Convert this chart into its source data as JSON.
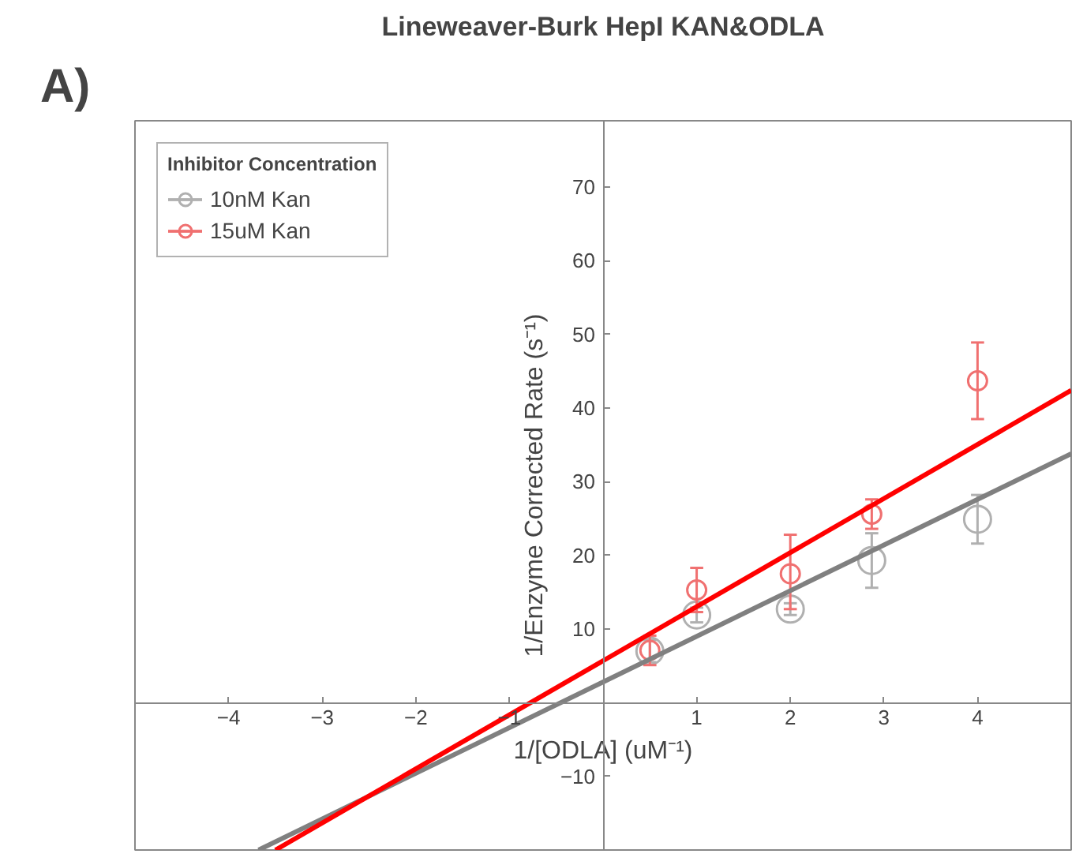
{
  "chart_data": {
    "type": "scatter",
    "title": "Lineweaver-Burk HepI KAN&ODLA",
    "annotations": [
      "A)"
    ],
    "xlabel": "1/[ODLA] (uM⁻¹)",
    "ylabel": "1/Enzyme Corrected Rate (s⁻¹)",
    "legend_title": "Inhibitor Concentration",
    "legend": "top left",
    "marker": "circle",
    "grid": false,
    "xlim": [
      -5,
      5
    ],
    "ylim": [
      -20,
      79
    ],
    "xticks": [
      -4,
      -3,
      -2,
      -1,
      1,
      2,
      3,
      4
    ],
    "yticks": [
      -10,
      10,
      20,
      30,
      40,
      50,
      60,
      70
    ],
    "series": [
      {
        "name": "10nM Kan",
        "color": "#b0b0b0",
        "x": [
          0.5,
          1,
          2,
          2.87,
          4
        ],
        "values": [
          7.0,
          11.9,
          12.7,
          19.3,
          24.9
        ],
        "errors": [
          1.5,
          1,
          0.8,
          3.7,
          3.3
        ]
      },
      {
        "name": "15uM Kan",
        "color": "#f07070",
        "x": [
          0.5,
          1,
          2,
          2.87,
          4
        ],
        "values": [
          7.1,
          15.3,
          17.5,
          25.6,
          43.7
        ],
        "errors": [
          2,
          3,
          [
            12.7,
            22.8
          ],
          2,
          5.2
        ]
      },
      {
        "type": "line",
        "marker": "none",
        "color": "#808080",
        "x": [
          -3.68,
          5
        ],
        "values": [
          -20,
          33.8
        ]
      },
      {
        "type": "line",
        "marker": "none",
        "color": "#ff0000",
        "x": [
          -3.5,
          5
        ],
        "values": [
          -20,
          42.4
        ]
      }
    ]
  }
}
